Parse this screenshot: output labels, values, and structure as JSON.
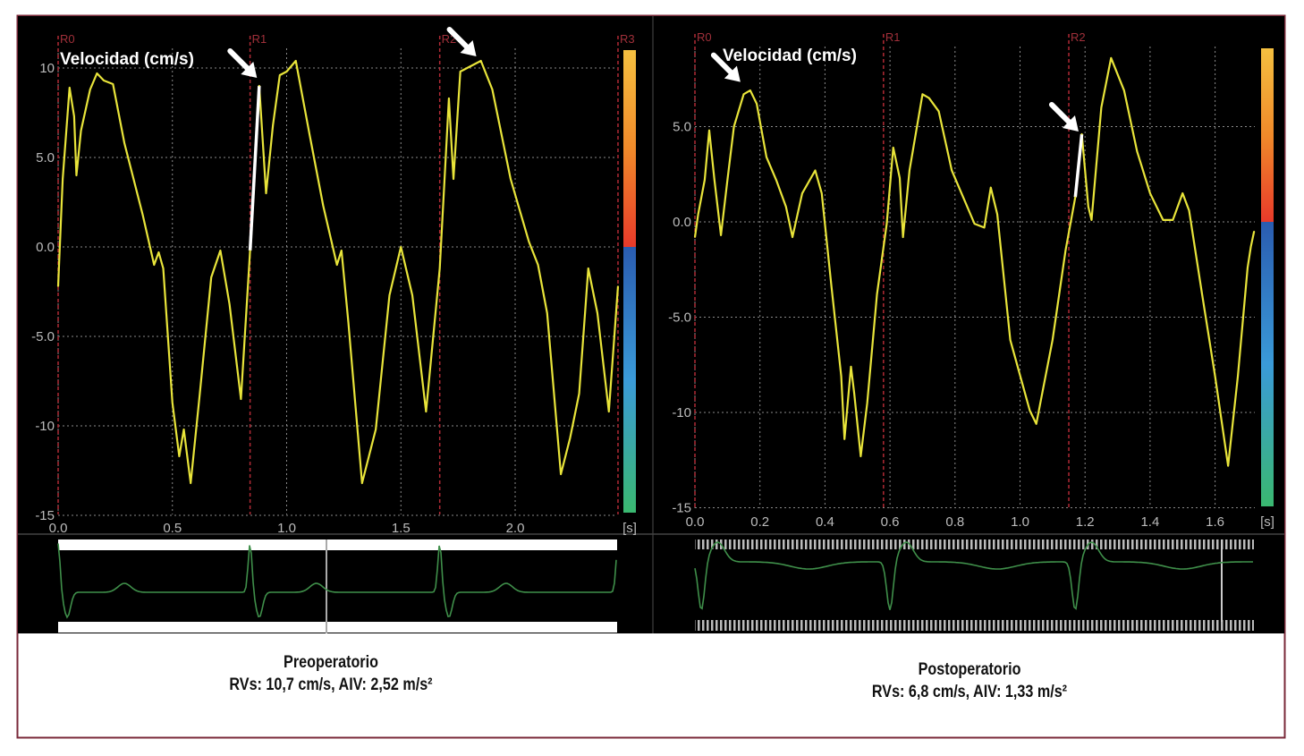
{
  "chart_data": [
    {
      "type": "line",
      "annotation": "Velocidad (cm/s)",
      "x_unit": "[s]",
      "xlim": [
        0,
        2.45
      ],
      "ylim": [
        -15,
        11.8
      ],
      "xticks": [
        "0.0",
        "0.5",
        "1.0",
        "1.5",
        "2.0"
      ],
      "xtick_values": [
        0,
        0.5,
        1,
        1.5,
        2
      ],
      "yticks": [
        "10",
        "5.0",
        "0.0",
        "-5.0",
        "-10",
        "-15"
      ],
      "ytick_values": [
        10,
        5,
        0,
        -5,
        -10,
        -15
      ],
      "grid": true,
      "line_color": "#e8e43a",
      "highlight_color": "#ffffff",
      "highlight_range": [
        0.84,
        0.88
      ],
      "markers": [
        {
          "label": "R0",
          "t": 0
        },
        {
          "label": "R1",
          "t": 0.84
        },
        {
          "label": "R2",
          "t": 1.67
        },
        {
          "label": "R3",
          "t": 2.45
        }
      ],
      "arrows": [
        {
          "t": 0.87,
          "v": 9.3
        },
        {
          "t": 1.83,
          "v": 10.5
        }
      ],
      "x": [
        0,
        0.02,
        0.05,
        0.07,
        0.08,
        0.1,
        0.14,
        0.17,
        0.2,
        0.24,
        0.29,
        0.37,
        0.42,
        0.44,
        0.46,
        0.5,
        0.53,
        0.55,
        0.58,
        0.62,
        0.67,
        0.71,
        0.75,
        0.8,
        0.84,
        0.88,
        0.91,
        0.94,
        0.97,
        1.0,
        1.04,
        1.1,
        1.16,
        1.22,
        1.24,
        1.27,
        1.33,
        1.39,
        1.45,
        1.5,
        1.55,
        1.61,
        1.67,
        1.71,
        1.73,
        1.76,
        1.79,
        1.85,
        1.9,
        1.98,
        2.06,
        2.1,
        2.14,
        2.2,
        2.24,
        2.28,
        2.32,
        2.36,
        2.41,
        2.45
      ],
      "y": [
        -2.2,
        3.8,
        8.9,
        7.3,
        4,
        6.5,
        8.8,
        9.7,
        9.3,
        9.1,
        5.8,
        1.8,
        -1,
        -0.3,
        -1.2,
        -8.7,
        -11.7,
        -10.2,
        -13.2,
        -8.2,
        -1.7,
        -0.2,
        -3.2,
        -8.5,
        -0.2,
        9,
        3,
        6.8,
        9.6,
        9.8,
        10.4,
        6.3,
        2.3,
        -1,
        -0.2,
        -4.2,
        -13.2,
        -10.2,
        -2.7,
        0,
        -2.7,
        -9.2,
        -1.2,
        8.3,
        3.8,
        9.8,
        10,
        10.4,
        8.8,
        3.8,
        0.3,
        -1,
        -3.7,
        -12.7,
        -10.7,
        -8.2,
        -1.2,
        -3.7,
        -9.2,
        -2.2
      ],
      "colorbar": {
        "positive": [
          "#e83a2a",
          "#f08a2a",
          "#f5c040"
        ],
        "negative": [
          "#2a5cb0",
          "#3a9ad8",
          "#3ab870"
        ]
      },
      "ecg_color": "#3f8f4a",
      "caption": {
        "title": "Preoperatorio",
        "subtitle": "RVs: 10,7 cm/s, AIV: 2,52 m/s²"
      }
    },
    {
      "type": "line",
      "annotation": "Velocidad (cm/s)",
      "x_unit": "[s]",
      "xlim": [
        0,
        1.72
      ],
      "ylim": [
        -15,
        9.8
      ],
      "xticks": [
        "0.0",
        "0.2",
        "0.4",
        "0.6",
        "0.8",
        "1.0",
        "1.2",
        "1.4",
        "1.6"
      ],
      "xtick_values": [
        0,
        0.2,
        0.4,
        0.6,
        0.8,
        1.0,
        1.2,
        1.4,
        1.6
      ],
      "yticks": [
        "5.0",
        "0.0",
        "-5.0",
        "-10",
        "-15"
      ],
      "ytick_values": [
        5,
        0,
        -5,
        -10,
        -15
      ],
      "grid": true,
      "line_color": "#e8e43a",
      "highlight_color": "#ffffff",
      "highlight_range": [
        1.15,
        1.19
      ],
      "markers": [
        {
          "label": "R0",
          "t": 0
        },
        {
          "label": "R1",
          "t": 0.58
        },
        {
          "label": "R2",
          "t": 1.15
        }
      ],
      "arrows": [
        {
          "t": 0.14,
          "v": 7.2
        },
        {
          "t": 1.18,
          "v": 4.6
        }
      ],
      "x": [
        0,
        0.01,
        0.03,
        0.044,
        0.06,
        0.08,
        0.1,
        0.12,
        0.15,
        0.17,
        0.19,
        0.22,
        0.25,
        0.28,
        0.3,
        0.33,
        0.37,
        0.39,
        0.42,
        0.45,
        0.46,
        0.48,
        0.49,
        0.51,
        0.53,
        0.56,
        0.59,
        0.61,
        0.63,
        0.64,
        0.66,
        0.7,
        0.72,
        0.75,
        0.79,
        0.82,
        0.86,
        0.89,
        0.91,
        0.93,
        0.97,
        1.03,
        1.05,
        1.1,
        1.14,
        1.17,
        1.19,
        1.21,
        1.22,
        1.25,
        1.28,
        1.32,
        1.36,
        1.4,
        1.44,
        1.47,
        1.5,
        1.52,
        1.56,
        1.6,
        1.64,
        1.67,
        1.7,
        1.71,
        1.72
      ],
      "y": [
        -0.8,
        0.4,
        2.2,
        4.8,
        2.2,
        -0.7,
        2.2,
        5,
        6.7,
        6.9,
        6.2,
        3.4,
        2.2,
        0.8,
        -0.8,
        1.5,
        2.7,
        1.5,
        -3.4,
        -8.1,
        -11.4,
        -7.6,
        -9,
        -12.3,
        -9.5,
        -3.8,
        -0.1,
        3.9,
        2.3,
        -0.8,
        2.7,
        6.7,
        6.5,
        5.8,
        2.7,
        1.5,
        -0.1,
        -0.3,
        1.8,
        0.4,
        -6.2,
        -9.9,
        -10.6,
        -6.2,
        -1.5,
        1.3,
        4.6,
        0.8,
        0.1,
        6,
        8.6,
        6.9,
        3.7,
        1.5,
        0.1,
        0.1,
        1.5,
        0.6,
        -3.8,
        -8.1,
        -12.8,
        -8.1,
        -2.4,
        -1.3,
        -0.5
      ],
      "colorbar": {
        "positive": [
          "#e83a2a",
          "#f08a2a",
          "#f5c040"
        ],
        "negative": [
          "#2a5cb0",
          "#3a9ad8",
          "#3ab870"
        ]
      },
      "ecg_color": "#3f8f4a",
      "caption": {
        "title": "Postoperatorio",
        "subtitle": "RVs: 6,8 cm/s, AIV: 1,33 m/s²"
      }
    }
  ]
}
